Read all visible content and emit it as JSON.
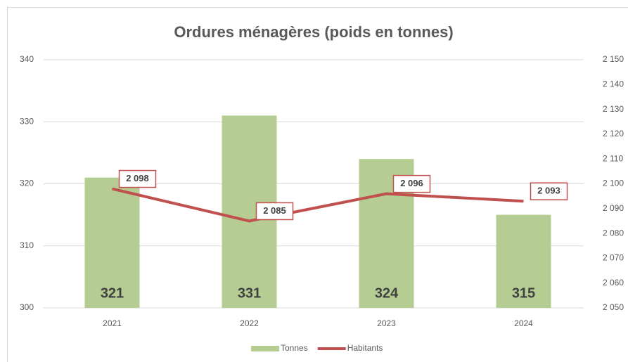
{
  "chart_data": {
    "type": "bar_line",
    "title": "Ordures ménagères (poids en tonnes)",
    "categories": [
      "2021",
      "2022",
      "2023",
      "2024"
    ],
    "series": [
      {
        "name": "Tonnes",
        "type": "bar",
        "color": "#b5cd93",
        "values": [
          321,
          331,
          324,
          315
        ]
      },
      {
        "name": "Habitants",
        "type": "line",
        "axis": "y2",
        "color": "#c0504d",
        "values": [
          2098,
          2085,
          2096,
          2093
        ],
        "value_labels": [
          "2 098",
          "2 085",
          "2 096",
          "2 093"
        ]
      }
    ],
    "ylim": [
      300,
      340
    ],
    "yticks": [
      300,
      310,
      320,
      330,
      340
    ],
    "y2lim": [
      2050,
      2150
    ],
    "y2ticks": [
      {
        "value": 2050,
        "label": "2 050"
      },
      {
        "value": 2060,
        "label": "2 060"
      },
      {
        "value": 2070,
        "label": "2 070"
      },
      {
        "value": 2080,
        "label": "2 080"
      },
      {
        "value": 2090,
        "label": "2 090"
      },
      {
        "value": 2100,
        "label": "2 100"
      },
      {
        "value": 2110,
        "label": "2 110"
      },
      {
        "value": 2120,
        "label": "2 120"
      },
      {
        "value": 2130,
        "label": "2 130"
      },
      {
        "value": 2140,
        "label": "2 140"
      },
      {
        "value": 2150,
        "label": "2 150"
      }
    ],
    "grid": true,
    "legend": "bottom"
  }
}
